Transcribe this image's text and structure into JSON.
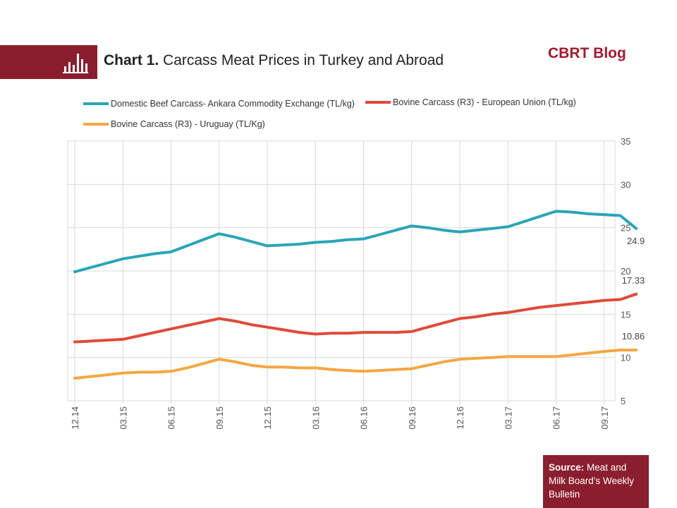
{
  "header": {
    "title_bold": "Chart 1.",
    "title_rest": "Carcass Meat Prices in Turkey and Abroad",
    "blog_name": "CBRT Blog",
    "brand_color": "#8b1e2e",
    "icon": "bar-chart-icon"
  },
  "source": {
    "label": "Source:",
    "text": "Meat and Milk Board’s Weekly Bulletin"
  },
  "chart_data": {
    "type": "line",
    "title": "Carcass Meat Prices in Turkey and Abroad",
    "xlabel": "",
    "ylabel": "",
    "ylim": [
      5,
      35
    ],
    "y_ticks": [
      5,
      10,
      15,
      20,
      25,
      30,
      35
    ],
    "y_axis_side": "right",
    "grid": true,
    "legend_position": "top",
    "x": [
      "12.14",
      "01.15",
      "02.15",
      "03.15",
      "04.15",
      "05.15",
      "06.15",
      "07.15",
      "08.15",
      "09.15",
      "10.15",
      "11.15",
      "12.15",
      "01.16",
      "02.16",
      "03.16",
      "04.16",
      "05.16",
      "06.16",
      "07.16",
      "08.16",
      "09.16",
      "10.16",
      "11.16",
      "12.16",
      "01.17",
      "02.17",
      "03.17",
      "04.17",
      "05.17",
      "06.17",
      "07.17",
      "08.17",
      "09.17",
      "10.17",
      "10.17b"
    ],
    "x_tick_labels": [
      "12.14",
      "03.15",
      "06.15",
      "09.15",
      "12.15",
      "03.16",
      "06.16",
      "09.16",
      "12.16",
      "03.17",
      "06.17",
      "09.17"
    ],
    "series": [
      {
        "name": "Domestic Beef Carcass- Ankara Commodity Exchange (TL/kg)",
        "color": "#2aa5b8",
        "values": [
          19.9,
          20.4,
          20.9,
          21.4,
          21.7,
          22.0,
          22.2,
          22.9,
          23.6,
          24.3,
          23.9,
          23.4,
          22.9,
          23.0,
          23.1,
          23.3,
          23.4,
          23.6,
          23.7,
          24.2,
          24.7,
          25.2,
          25.0,
          24.7,
          24.5,
          24.7,
          24.9,
          25.1,
          25.7,
          26.3,
          26.9,
          26.8,
          26.6,
          26.5,
          26.4,
          24.9
        ],
        "end_label": "24.9"
      },
      {
        "name": "Bovine Carcass (R3) - European Union (TL/kg)",
        "color": "#e04a3a",
        "values": [
          11.8,
          11.9,
          12.0,
          12.1,
          12.5,
          12.9,
          13.3,
          13.7,
          14.1,
          14.5,
          14.2,
          13.8,
          13.5,
          13.2,
          12.9,
          12.7,
          12.8,
          12.8,
          12.9,
          12.9,
          12.9,
          13.0,
          13.5,
          14.0,
          14.5,
          14.7,
          15.0,
          15.2,
          15.5,
          15.8,
          16.0,
          16.2,
          16.4,
          16.6,
          16.7,
          17.33
        ],
        "end_label": "17.33"
      },
      {
        "name": "Bovine Carcass (R3) - Uruguay (TL/Kg)",
        "color": "#f5a742",
        "values": [
          7.6,
          7.8,
          8.0,
          8.2,
          8.3,
          8.3,
          8.4,
          8.8,
          9.3,
          9.8,
          9.5,
          9.1,
          8.9,
          8.9,
          8.8,
          8.8,
          8.6,
          8.5,
          8.4,
          8.5,
          8.6,
          8.7,
          9.1,
          9.5,
          9.8,
          9.9,
          10.0,
          10.1,
          10.1,
          10.1,
          10.1,
          10.3,
          10.5,
          10.7,
          10.86,
          10.86
        ],
        "end_label": "10.86"
      }
    ]
  }
}
